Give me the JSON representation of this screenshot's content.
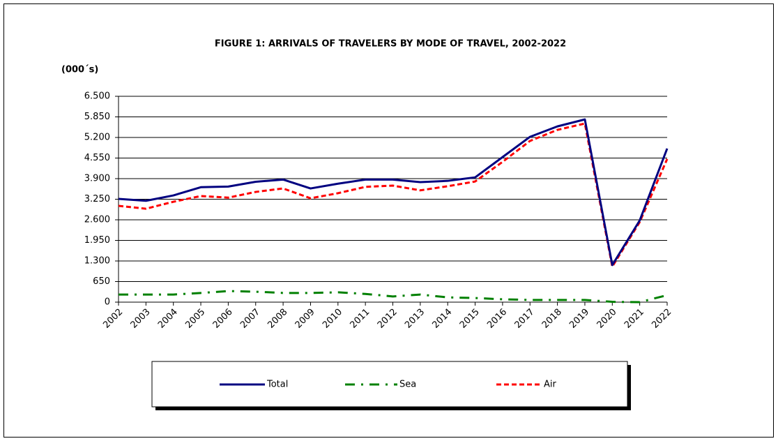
{
  "chart_data": {
    "type": "line",
    "title": "FIGURE 1:  ARRIVALS OF TRAVELERS BY MODE OF TRAVEL, 2002-2022",
    "y_label": "(000´s)",
    "categories": [
      "2002",
      "2003",
      "2004",
      "2005",
      "2006",
      "2007",
      "2008",
      "2009",
      "2010",
      "2011",
      "2012",
      "2013",
      "2014",
      "2015",
      "2016",
      "2017",
      "2018",
      "2019",
      "2020",
      "2021",
      "2022"
    ],
    "series": [
      {
        "name": "Total",
        "color": "#000080",
        "values": [
          3260,
          3200,
          3370,
          3630,
          3650,
          3800,
          3870,
          3590,
          3740,
          3870,
          3870,
          3790,
          3830,
          3940,
          4580,
          5220,
          5550,
          5770,
          1170,
          2580,
          4850
        ]
      },
      {
        "name": "Sea",
        "color": "#008000",
        "values": [
          240,
          240,
          240,
          290,
          350,
          330,
          290,
          290,
          310,
          260,
          180,
          240,
          150,
          130,
          90,
          70,
          70,
          70,
          10,
          0,
          220
        ]
      },
      {
        "name": "Air",
        "color": "#ff0000",
        "values": [
          3040,
          2950,
          3170,
          3350,
          3300,
          3480,
          3590,
          3280,
          3440,
          3640,
          3680,
          3530,
          3660,
          3810,
          4430,
          5090,
          5440,
          5640,
          1120,
          2530,
          4520
        ]
      }
    ],
    "ylim": [
      0,
      6500
    ],
    "yticks": [
      0,
      {
        "value": 650,
        "label": "650"
      },
      {
        "value": 1300,
        "label": "1.300"
      },
      {
        "value": 1950,
        "label": "1.950"
      },
      {
        "value": 2600,
        "label": "2.600"
      },
      {
        "value": 3250,
        "label": "3.250"
      },
      {
        "value": 3900,
        "label": "3.900"
      },
      {
        "value": 4550,
        "label": "4.550"
      },
      {
        "value": 5200,
        "label": "5.200"
      },
      {
        "value": 5850,
        "label": "5.850"
      },
      {
        "value": 6500,
        "label": "6.500"
      }
    ],
    "grid": true,
    "legend": "bottom"
  }
}
